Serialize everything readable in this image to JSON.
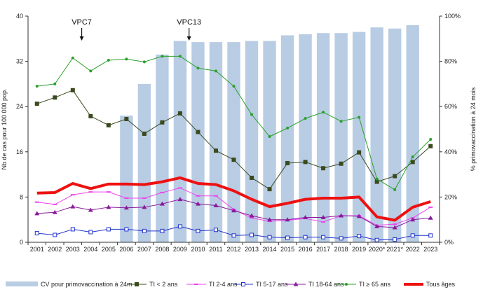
{
  "chart_data": {
    "type": "bar+line",
    "title": "",
    "categories": [
      "2001",
      "2002",
      "2003",
      "2004",
      "2005",
      "2006",
      "2007",
      "2008",
      "2009",
      "2010",
      "2011",
      "2012",
      "2013",
      "2014",
      "2015",
      "2016",
      "2017",
      "2018",
      "2019",
      "2020*",
      "2021*",
      "2022",
      "2023"
    ],
    "ylabel_left": "Nb de cas pour 100 000 pop.",
    "ylabel_right": "% primovaccination à 24 mois",
    "ylim_left": [
      0,
      40
    ],
    "ylim_right": [
      0,
      100
    ],
    "yticks_left": [
      "0",
      "8",
      "16",
      "24",
      "32",
      "40"
    ],
    "yticks_right": [
      "0%",
      "20%",
      "40%",
      "60%",
      "80%",
      "100%"
    ],
    "bars": {
      "name": "CV pour primovaccination à 24m",
      "color": "#b8cce4",
      "axis": "right",
      "values": [
        null,
        null,
        null,
        null,
        null,
        56,
        70,
        83,
        89,
        88.5,
        88.5,
        88.5,
        89,
        89,
        91.5,
        92,
        92.5,
        92.5,
        93,
        95,
        94.5,
        96,
        null
      ]
    },
    "series": [
      {
        "name": "TI < 2 ans",
        "color": "#3b4a1e",
        "marker": "square",
        "values": [
          24.5,
          25.6,
          26.9,
          22.3,
          20.7,
          21.8,
          19.2,
          21.2,
          22.8,
          19.5,
          16.2,
          14.6,
          11.4,
          9.4,
          14.0,
          14.2,
          13.1,
          13.9,
          15.9,
          10.7,
          11.7,
          14.2,
          17.0
        ]
      },
      {
        "name": "TI 2-4 ans",
        "color": "#ee44ee",
        "marker": "dash",
        "values": [
          7.1,
          6.7,
          8.4,
          8.9,
          8.9,
          7.8,
          7.8,
          8.8,
          9.6,
          8.2,
          8.2,
          5.8,
          4.3,
          3.7,
          3.9,
          4.2,
          3.6,
          4.7,
          4.7,
          3.0,
          3.2,
          4.3,
          6.2
        ]
      },
      {
        "name": "TI 5-17 ans",
        "color": "#2233cc",
        "marker": "square-open",
        "values": [
          1.6,
          1.3,
          2.3,
          1.8,
          2.3,
          2.3,
          2.0,
          2.0,
          2.8,
          2.0,
          2.2,
          1.2,
          1.3,
          0.9,
          0.8,
          0.9,
          0.9,
          0.7,
          1.1,
          0.4,
          0.5,
          1.2,
          1.2
        ]
      },
      {
        "name": "TI 18-64 ans",
        "color": "#8a1a9b",
        "marker": "triangle",
        "values": [
          5.1,
          5.3,
          6.3,
          5.7,
          6.2,
          6.1,
          6.2,
          6.8,
          7.6,
          6.8,
          6.5,
          5.6,
          4.7,
          4.0,
          4.0,
          4.4,
          4.4,
          4.7,
          4.6,
          2.8,
          2.6,
          4.0,
          4.3
        ]
      },
      {
        "name": "TI ≥ 65 ans",
        "color": "#2aa02a",
        "marker": "dot",
        "values": [
          27.6,
          28.0,
          32.6,
          30.3,
          32.2,
          32.4,
          31.9,
          32.9,
          32.9,
          30.8,
          30.3,
          27.6,
          22.6,
          18.7,
          20.2,
          21.9,
          23.0,
          21.4,
          22.1,
          11.2,
          9.3,
          15.1,
          18.2
        ]
      },
      {
        "name": "Tous âges",
        "color": "#ee1111",
        "marker": "none",
        "thick": true,
        "values": [
          8.7,
          8.8,
          10.4,
          9.5,
          10.3,
          10.3,
          10.2,
          10.7,
          11.4,
          10.4,
          10.2,
          9.1,
          7.6,
          6.3,
          6.9,
          7.6,
          7.8,
          7.8,
          8.0,
          4.5,
          3.9,
          6.2,
          7.2
        ]
      }
    ],
    "annotations": [
      {
        "text": "VPC7",
        "category": "2004"
      },
      {
        "text": "VPC13",
        "category": "2010"
      }
    ],
    "legend_position": "bottom",
    "grid": false
  }
}
